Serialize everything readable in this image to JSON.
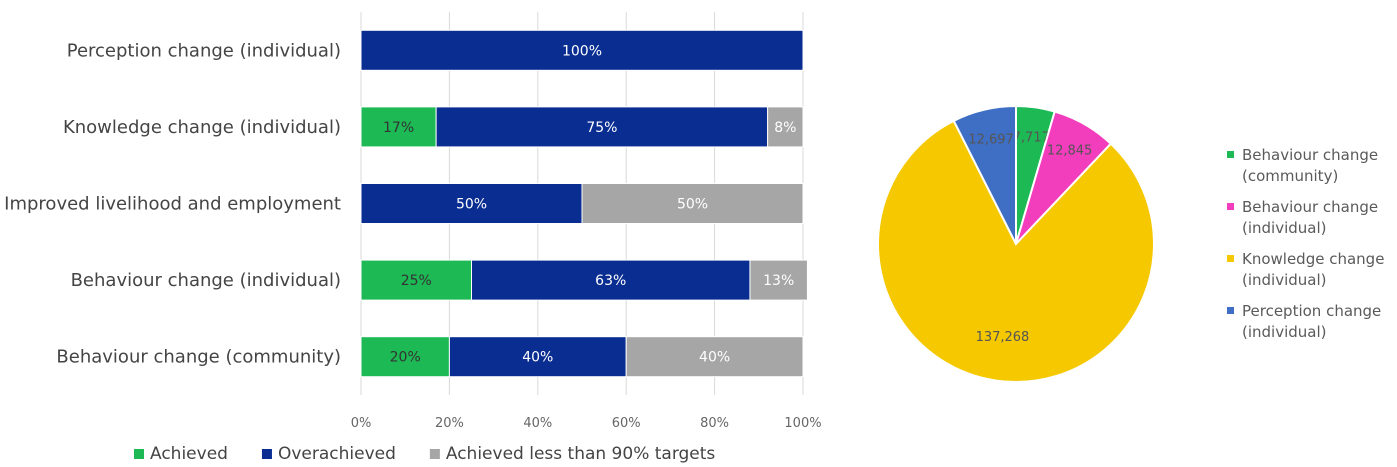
{
  "chart_data": [
    {
      "type": "bar",
      "orientation": "horizontal",
      "stacked": "percent",
      "title": "",
      "xlabel": "",
      "ylabel": "",
      "xlim": [
        0,
        100
      ],
      "grid": true,
      "legend_position": "bottom",
      "categories": [
        "Perception change (individual)",
        "Knowledge change (individual)",
        "Improved livelihood and employment",
        "Behaviour change (individual)",
        "Behaviour change (community)"
      ],
      "x_ticks": [
        "0%",
        "20%",
        "40%",
        "60%",
        "80%",
        "100%"
      ],
      "series": [
        {
          "name": "Achieved",
          "color": "#1db954",
          "values": [
            0,
            17,
            0,
            25,
            20
          ],
          "labels": [
            "",
            "17%",
            "",
            "25%",
            "20%"
          ]
        },
        {
          "name": "Overachieved",
          "color": "#0a2d91",
          "values": [
            100,
            75,
            50,
            63,
            40
          ],
          "labels": [
            "100%",
            "75%",
            "50%",
            "63%",
            "40%"
          ]
        },
        {
          "name": "Achieved less than 90% targets",
          "color": "#a6a6a6",
          "values": [
            0,
            8,
            50,
            13,
            40
          ],
          "labels": [
            "",
            "8%",
            "50%",
            "13%",
            "40%"
          ]
        }
      ]
    },
    {
      "type": "pie",
      "title": "",
      "legend_position": "right",
      "slices": [
        {
          "name": "Behaviour change (community)",
          "legend_lines": [
            "Behaviour change",
            "(community)"
          ],
          "value": 7717,
          "label": "7,717",
          "color": "#1db954"
        },
        {
          "name": "Behaviour change (individual)",
          "legend_lines": [
            "Behaviour change",
            "(individual)"
          ],
          "value": 12845,
          "label": "12,845",
          "color": "#f23dbd"
        },
        {
          "name": "Knowledge change (individual)",
          "legend_lines": [
            "Knowledge change",
            "(individual)"
          ],
          "value": 137268,
          "label": "137,268",
          "color": "#f5c800"
        },
        {
          "name": "Perception change (individual)",
          "legend_lines": [
            "Perception change",
            "(individual)"
          ],
          "value": 12697,
          "label": "12,697",
          "color": "#3f6fc4"
        }
      ]
    }
  ]
}
